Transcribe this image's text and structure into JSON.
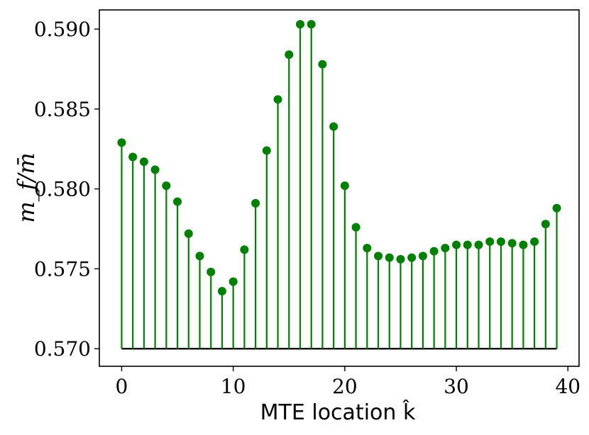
{
  "chart_data": {
    "type": "stem",
    "title": "",
    "xlabel": "MTE location k̂",
    "ylabel": "m_f/m̄",
    "xlim": [
      -2,
      41
    ],
    "ylim": [
      0.5689,
      0.5912
    ],
    "baseline": 0.57,
    "grid": false,
    "colors": {
      "stem": "#008000",
      "baseline": "#000000"
    },
    "x_ticks": [
      0,
      10,
      20,
      30,
      40
    ],
    "x_tick_labels": [
      "0",
      "10",
      "20",
      "30",
      "40"
    ],
    "y_ticks": [
      0.57,
      0.575,
      0.58,
      0.585,
      0.59
    ],
    "y_tick_labels": [
      "0.570",
      "0.575",
      "0.580",
      "0.585",
      "0.590"
    ],
    "x": [
      0,
      1,
      2,
      3,
      4,
      5,
      6,
      7,
      8,
      9,
      10,
      11,
      12,
      13,
      14,
      15,
      16,
      17,
      18,
      19,
      20,
      21,
      22,
      23,
      24,
      25,
      26,
      27,
      28,
      29,
      30,
      31,
      32,
      33,
      34,
      35,
      36,
      37,
      38,
      39
    ],
    "values": [
      0.5829,
      0.582,
      0.5817,
      0.5812,
      0.5802,
      0.5792,
      0.5772,
      0.5758,
      0.5748,
      0.5736,
      0.5742,
      0.5762,
      0.5791,
      0.5824,
      0.5856,
      0.5884,
      0.5903,
      0.5903,
      0.5878,
      0.5839,
      0.5802,
      0.5776,
      0.5763,
      0.5758,
      0.5757,
      0.5756,
      0.5757,
      0.5758,
      0.5761,
      0.5763,
      0.5765,
      0.5765,
      0.5765,
      0.5767,
      0.5767,
      0.5766,
      0.5765,
      0.5767,
      0.5778,
      0.5788
    ]
  }
}
